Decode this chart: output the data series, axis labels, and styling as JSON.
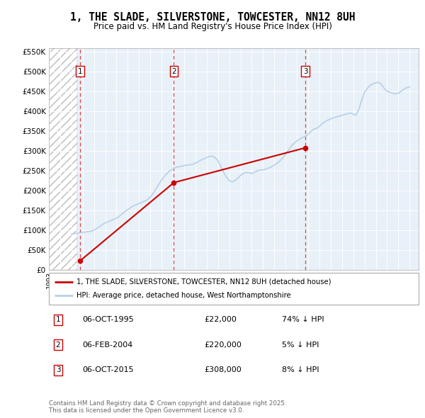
{
  "title": "1, THE SLADE, SILVERSTONE, TOWCESTER, NN12 8UH",
  "subtitle": "Price paid vs. HM Land Registry's House Price Index (HPI)",
  "legend_line1": "1, THE SLADE, SILVERSTONE, TOWCESTER, NN12 8UH (detached house)",
  "legend_line2": "HPI: Average price, detached house, West Northamptonshire",
  "footer": "Contains HM Land Registry data © Crown copyright and database right 2025.\nThis data is licensed under the Open Government Licence v3.0.",
  "transactions": [
    {
      "label": "1",
      "date": "06-OCT-1995",
      "price": 22000,
      "hpi_pct": "74% ↓ HPI",
      "x_year": 1995.76
    },
    {
      "label": "2",
      "date": "06-FEB-2004",
      "price": 220000,
      "hpi_pct": "5% ↓ HPI",
      "x_year": 2004.09
    },
    {
      "label": "3",
      "date": "06-OCT-2015",
      "price": 308000,
      "hpi_pct": "8% ↓ HPI",
      "x_year": 2015.76
    }
  ],
  "hpi_line_color": "#b8d0e8",
  "price_line_color": "#cc0000",
  "transaction_dot_color": "#cc0000",
  "dashed_line_color": "#dd4444",
  "ylim": [
    0,
    560000
  ],
  "ytick_values": [
    0,
    50000,
    100000,
    150000,
    200000,
    250000,
    300000,
    350000,
    400000,
    450000,
    500000,
    550000
  ],
  "xlim_start": 1993.0,
  "xlim_end": 2025.8,
  "hatch_end": 1995.5,
  "chart_bg": "#e8f0f8",
  "hpi_data_years": [
    1995.0,
    1995.25,
    1995.5,
    1995.75,
    1996.0,
    1996.25,
    1996.5,
    1996.75,
    1997.0,
    1997.25,
    1997.5,
    1997.75,
    1998.0,
    1998.25,
    1998.5,
    1998.75,
    1999.0,
    1999.25,
    1999.5,
    1999.75,
    2000.0,
    2000.25,
    2000.5,
    2000.75,
    2001.0,
    2001.25,
    2001.5,
    2001.75,
    2002.0,
    2002.25,
    2002.5,
    2002.75,
    2003.0,
    2003.25,
    2003.5,
    2003.75,
    2004.0,
    2004.25,
    2004.5,
    2004.75,
    2005.0,
    2005.25,
    2005.5,
    2005.75,
    2006.0,
    2006.25,
    2006.5,
    2006.75,
    2007.0,
    2007.25,
    2007.5,
    2007.75,
    2008.0,
    2008.25,
    2008.5,
    2008.75,
    2009.0,
    2009.25,
    2009.5,
    2009.75,
    2010.0,
    2010.25,
    2010.5,
    2010.75,
    2011.0,
    2011.25,
    2011.5,
    2011.75,
    2012.0,
    2012.25,
    2012.5,
    2012.75,
    2013.0,
    2013.25,
    2013.5,
    2013.75,
    2014.0,
    2014.25,
    2014.5,
    2014.75,
    2015.0,
    2015.25,
    2015.5,
    2015.75,
    2016.0,
    2016.25,
    2016.5,
    2016.75,
    2017.0,
    2017.25,
    2017.5,
    2017.75,
    2018.0,
    2018.25,
    2018.5,
    2018.75,
    2019.0,
    2019.25,
    2019.5,
    2019.75,
    2020.0,
    2020.25,
    2020.5,
    2020.75,
    2021.0,
    2021.25,
    2021.5,
    2021.75,
    2022.0,
    2022.25,
    2022.5,
    2022.75,
    2023.0,
    2023.25,
    2023.5,
    2023.75,
    2024.0,
    2024.25,
    2024.5,
    2024.75,
    2025.0
  ],
  "hpi_data_values": [
    90000,
    91000,
    92000,
    93000,
    94000,
    95000,
    96000,
    97000,
    100000,
    104000,
    109000,
    114000,
    118000,
    121000,
    124000,
    127000,
    130000,
    135000,
    141000,
    147000,
    152000,
    157000,
    161000,
    164000,
    167000,
    170000,
    173000,
    177000,
    183000,
    193000,
    204000,
    216000,
    226000,
    236000,
    244000,
    250000,
    254000,
    258000,
    260000,
    261000,
    263000,
    264000,
    265000,
    266000,
    269000,
    273000,
    277000,
    280000,
    283000,
    286000,
    287000,
    283000,
    275000,
    261000,
    246000,
    234000,
    225000,
    222000,
    225000,
    231000,
    238000,
    243000,
    246000,
    245000,
    243000,
    246000,
    250000,
    252000,
    252000,
    254000,
    257000,
    260000,
    264000,
    269000,
    275000,
    282000,
    292000,
    302000,
    312000,
    319000,
    325000,
    330000,
    334000,
    337000,
    342000,
    349000,
    355000,
    357000,
    362000,
    369000,
    374000,
    378000,
    381000,
    384000,
    386000,
    388000,
    390000,
    392000,
    394000,
    396000,
    393000,
    390000,
    406000,
    428000,
    448000,
    458000,
    466000,
    470000,
    472000,
    474000,
    468000,
    458000,
    451000,
    448000,
    446000,
    444000,
    446000,
    451000,
    456000,
    460000,
    462000
  ],
  "price_paid_years": [
    1995.76,
    2004.09,
    2015.76
  ],
  "price_paid_values": [
    22000,
    220000,
    308000
  ]
}
